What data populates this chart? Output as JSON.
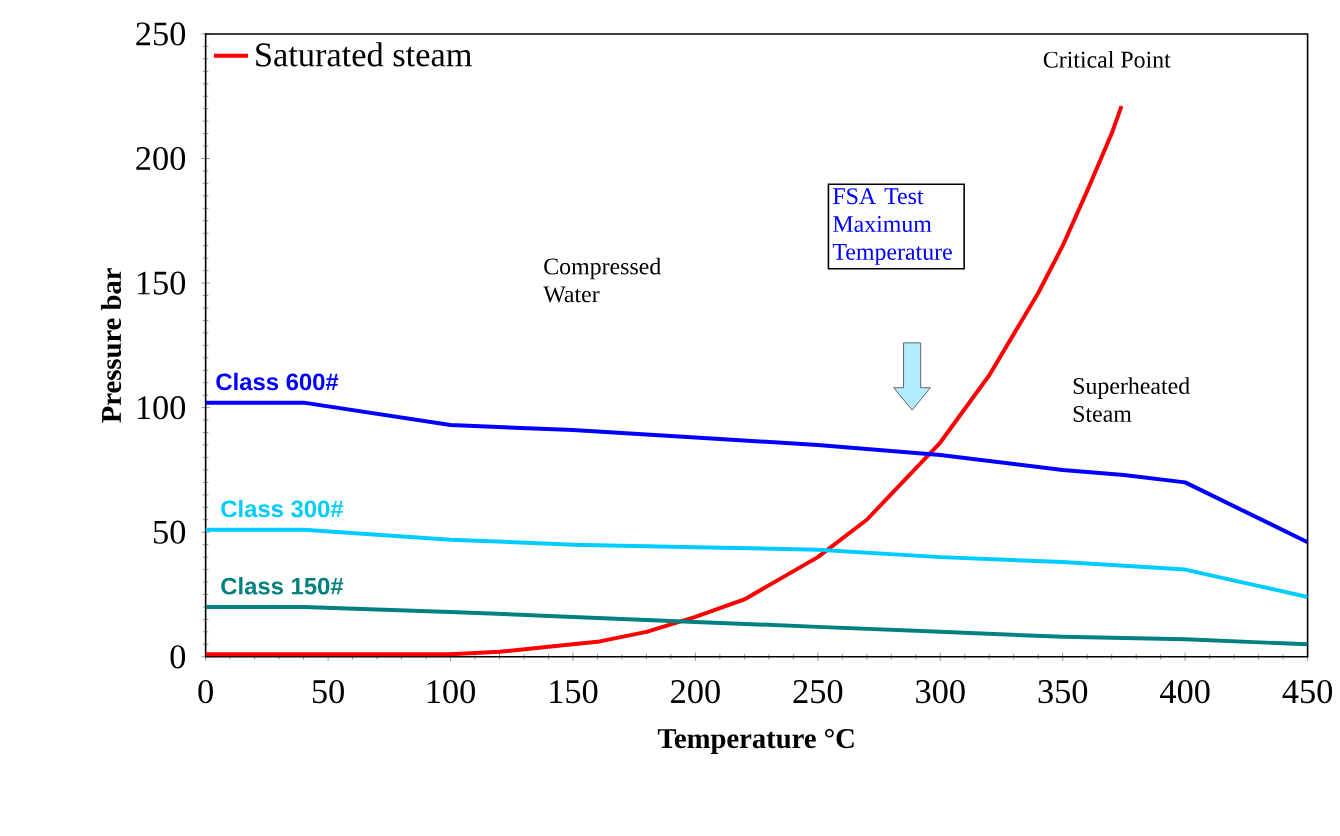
{
  "chart_data": {
    "type": "line",
    "xlabel": "Temperature °C",
    "ylabel": "Pressure bar",
    "xlim": [
      0,
      450
    ],
    "ylim": [
      0,
      250
    ],
    "xticks": [
      0,
      50,
      100,
      150,
      200,
      250,
      300,
      350,
      400,
      450
    ],
    "yticks": [
      0,
      50,
      100,
      150,
      200,
      250
    ],
    "grid": false,
    "legend": "top left",
    "marker": "none",
    "line_style": "solid",
    "series": [
      {
        "name": "Saturated steam",
        "color": "#ff0000",
        "x": [
          0,
          50,
          100,
          120,
          140,
          150,
          160,
          180,
          200,
          220,
          250,
          270,
          300,
          320,
          340,
          350,
          360,
          370,
          374
        ],
        "values": [
          1,
          1,
          1,
          2,
          4,
          5,
          6,
          10,
          16,
          23,
          40,
          55,
          86,
          113,
          146,
          165,
          187,
          210,
          221
        ]
      },
      {
        "name": "Class 600#",
        "color": "#0000ff",
        "x": [
          0,
          40,
          100,
          150,
          200,
          250,
          300,
          350,
          375,
          400,
          450
        ],
        "values": [
          102,
          102,
          93,
          91,
          88,
          85,
          81,
          75,
          73,
          70,
          46
        ]
      },
      {
        "name": "Class 300#",
        "color": "#00ccff",
        "x": [
          0,
          40,
          100,
          150,
          200,
          250,
          300,
          350,
          400,
          450
        ],
        "values": [
          51,
          51,
          47,
          45,
          44,
          43,
          40,
          38,
          35,
          24
        ]
      },
      {
        "name": "Class 150#",
        "color": "#008080",
        "x": [
          0,
          40,
          100,
          150,
          200,
          250,
          300,
          350,
          400,
          450
        ],
        "values": [
          20,
          20,
          18,
          16,
          14,
          12,
          10,
          8,
          7,
          5
        ]
      }
    ],
    "annotations": [
      "Critical Point",
      "Compressed Water",
      "FSA Test Maximum Temperature",
      "Superheated Steam"
    ]
  }
}
